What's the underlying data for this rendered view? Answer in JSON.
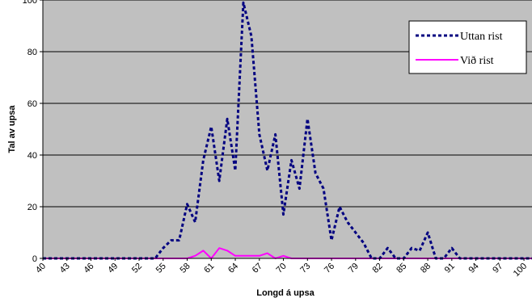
{
  "chart_data": {
    "type": "line",
    "title": "",
    "xlabel": "Longd á upsa",
    "ylabel": "Tal av upsa",
    "xlim": [
      40,
      101
    ],
    "ylim": [
      0,
      100
    ],
    "x_ticks": [
      "40",
      "43",
      "46",
      "49",
      "52",
      "55",
      "58",
      "61",
      "64",
      "67",
      "70",
      "73",
      "76",
      "79",
      "82",
      "85",
      "88",
      "91",
      "94",
      "97",
      "100"
    ],
    "y_ticks": [
      "0",
      "20",
      "40",
      "60",
      "80",
      "100"
    ],
    "grid": true,
    "legend_position": "top-right",
    "background_color": "#c0c0c0",
    "x": [
      40,
      41,
      42,
      43,
      44,
      45,
      46,
      47,
      48,
      49,
      50,
      51,
      52,
      53,
      54,
      55,
      56,
      57,
      58,
      59,
      60,
      61,
      62,
      63,
      64,
      65,
      66,
      67,
      68,
      69,
      70,
      71,
      72,
      73,
      74,
      75,
      76,
      77,
      78,
      79,
      80,
      81,
      82,
      83,
      84,
      85,
      86,
      87,
      88,
      89,
      90,
      91,
      92,
      93,
      94,
      95,
      96,
      97,
      98,
      99,
      100,
      101
    ],
    "series": [
      {
        "name": "Uttan rist",
        "color": "#000080",
        "style": "dotted",
        "values": [
          0,
          0,
          0,
          0,
          0,
          0,
          0,
          0,
          0,
          0,
          0,
          0,
          0,
          0,
          0,
          4,
          7,
          7,
          21,
          14,
          38,
          51,
          30,
          54,
          34,
          99,
          86,
          48,
          34,
          48,
          17,
          38,
          27,
          54,
          33,
          27,
          7,
          20,
          14,
          10,
          6,
          0,
          0,
          4,
          0,
          0,
          4,
          3,
          10,
          0,
          0,
          4,
          0,
          0,
          0,
          0,
          0,
          0,
          0,
          0,
          0,
          0
        ]
      },
      {
        "name": "Við rist",
        "color": "#ff00ff",
        "style": "solid",
        "values": [
          0,
          0,
          0,
          0,
          0,
          0,
          0,
          0,
          0,
          0,
          0,
          0,
          0,
          0,
          0,
          0,
          0,
          0,
          0,
          1,
          3,
          0,
          4,
          3,
          1,
          1,
          1,
          1,
          2,
          0,
          1,
          0,
          0,
          0,
          0,
          0,
          0,
          0,
          0,
          0,
          0,
          0,
          0,
          0,
          0,
          0,
          0,
          0,
          0,
          0,
          0,
          0,
          0,
          0,
          0,
          0,
          0,
          0,
          0,
          0,
          0,
          0
        ]
      }
    ]
  }
}
